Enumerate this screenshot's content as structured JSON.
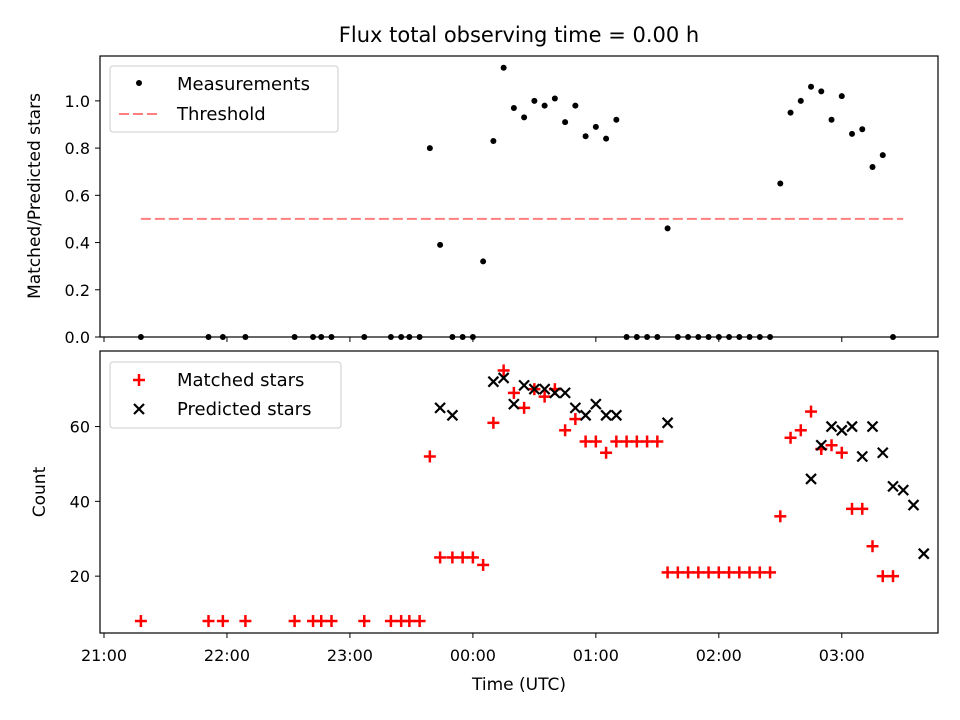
{
  "figure": {
    "title": "Flux total observing time = 0.00 h"
  },
  "chart_data": [
    {
      "type": "scatter",
      "ylabel": "Matched/Predicted stars",
      "ylim": [
        0.0,
        1.19
      ],
      "xlim": [
        "21:00",
        "03:45"
      ],
      "yticks": [
        {
          "label": "0.0",
          "value": 0.0
        },
        {
          "label": "0.2",
          "value": 0.2
        },
        {
          "label": "0.4",
          "value": 0.4
        },
        {
          "label": "0.6",
          "value": 0.6
        },
        {
          "label": "0.8",
          "value": 0.8
        },
        {
          "label": "1.0",
          "value": 1.0
        }
      ],
      "legend_position": "top-left",
      "series": [
        {
          "name": "Measurements",
          "marker": "dot",
          "color": "#000000",
          "x": [
            "21:18",
            "21:51",
            "21:58",
            "22:09",
            "22:33",
            "22:42",
            "22:46",
            "22:51",
            "23:07",
            "23:20",
            "23:25",
            "23:29",
            "23:34",
            "23:39",
            "23:44",
            "23:50",
            "23:55",
            "00:00",
            "00:05",
            "00:10",
            "00:15",
            "00:20",
            "00:25",
            "00:30",
            "00:35",
            "00:40",
            "00:45",
            "00:50",
            "00:55",
            "01:00",
            "01:05",
            "01:10",
            "01:15",
            "01:20",
            "01:25",
            "01:30",
            "01:35",
            "01:40",
            "01:45",
            "01:50",
            "01:55",
            "02:00",
            "02:05",
            "02:10",
            "02:15",
            "02:20",
            "02:25",
            "02:30",
            "02:35",
            "02:40",
            "02:45",
            "02:50",
            "02:55",
            "03:00",
            "03:05",
            "03:10",
            "03:15",
            "03:20",
            "03:25"
          ],
          "y": [
            0,
            0,
            0,
            0,
            0,
            0,
            0,
            0,
            0,
            0,
            0,
            0,
            0,
            0.8,
            0.39,
            0,
            0,
            0,
            0.32,
            0.83,
            1.14,
            0.97,
            0.93,
            1.0,
            0.98,
            1.01,
            0.91,
            0.98,
            0.85,
            0.89,
            0.84,
            0.92,
            0,
            0,
            0,
            0,
            0.46,
            0,
            0,
            0,
            0,
            0,
            0,
            0,
            0,
            0,
            0,
            0.65,
            0.95,
            1.0,
            1.06,
            1.04,
            0.92,
            1.02,
            0.86,
            0.88,
            0.72,
            0.77,
            0
          ]
        },
        {
          "name": "Threshold",
          "style": "dashed",
          "color": "#ff7f7f",
          "x": [
            "21:18",
            "03:30"
          ],
          "y": [
            0.5,
            0.5
          ]
        }
      ]
    },
    {
      "type": "scatter",
      "xlabel": "Time (UTC)",
      "ylabel": "Count",
      "ylim": [
        4.8,
        80.2
      ],
      "xlim": [
        "21:00",
        "03:45"
      ],
      "yticks": [
        {
          "label": "20",
          "value": 20
        },
        {
          "label": "40",
          "value": 40
        },
        {
          "label": "60",
          "value": 60
        }
      ],
      "xticks": [
        {
          "label": "21:00",
          "value": "21:00"
        },
        {
          "label": "22:00",
          "value": "22:00"
        },
        {
          "label": "23:00",
          "value": "23:00"
        },
        {
          "label": "00:00",
          "value": "00:00"
        },
        {
          "label": "01:00",
          "value": "01:00"
        },
        {
          "label": "02:00",
          "value": "02:00"
        },
        {
          "label": "03:00",
          "value": "03:00"
        }
      ],
      "legend_position": "top-left",
      "series": [
        {
          "name": "Matched stars",
          "marker": "plus",
          "color": "#ff0000",
          "x": [
            "21:18",
            "21:51",
            "21:58",
            "22:09",
            "22:33",
            "22:42",
            "22:46",
            "22:51",
            "23:07",
            "23:20",
            "23:25",
            "23:29",
            "23:34",
            "23:39",
            "23:44",
            "23:50",
            "23:55",
            "00:00",
            "00:05",
            "00:10",
            "00:15",
            "00:20",
            "00:25",
            "00:30",
            "00:35",
            "00:40",
            "00:45",
            "00:50",
            "00:55",
            "01:00",
            "01:05",
            "01:10",
            "01:15",
            "01:20",
            "01:25",
            "01:30",
            "01:35",
            "01:40",
            "01:45",
            "01:50",
            "01:55",
            "02:00",
            "02:05",
            "02:10",
            "02:15",
            "02:20",
            "02:25",
            "02:30",
            "02:35",
            "02:40",
            "02:45",
            "02:50",
            "02:55",
            "03:00",
            "03:05",
            "03:10",
            "03:15",
            "03:20",
            "03:25"
          ],
          "y": [
            8,
            8,
            8,
            8,
            8,
            8,
            8,
            8,
            8,
            8,
            8,
            8,
            8,
            52,
            25,
            25,
            25,
            25,
            23,
            61,
            75,
            69,
            65,
            70,
            68,
            70,
            59,
            62,
            56,
            56,
            53,
            56,
            56,
            56,
            56,
            56,
            21,
            21,
            21,
            21,
            21,
            21,
            21,
            21,
            21,
            21,
            21,
            36,
            57,
            59,
            64,
            54,
            55,
            53,
            38,
            38,
            28,
            20,
            20
          ]
        },
        {
          "name": "Predicted stars",
          "marker": "x",
          "color": "#000000",
          "x": [
            "23:44",
            "23:50",
            "00:10",
            "00:15",
            "00:20",
            "00:25",
            "00:30",
            "00:35",
            "00:40",
            "00:45",
            "00:50",
            "00:55",
            "01:00",
            "01:05",
            "01:10",
            "01:35",
            "02:45",
            "02:50",
            "02:55",
            "03:00",
            "03:05",
            "03:10",
            "03:15",
            "03:20",
            "03:25",
            "03:30",
            "03:35",
            "03:40"
          ],
          "y": [
            65,
            63,
            72,
            73,
            66,
            71,
            70,
            70,
            69,
            69,
            65,
            63,
            66,
            63,
            63,
            61,
            46,
            55,
            60,
            59,
            60,
            52,
            60,
            53,
            44,
            43,
            39,
            26
          ]
        }
      ]
    }
  ]
}
